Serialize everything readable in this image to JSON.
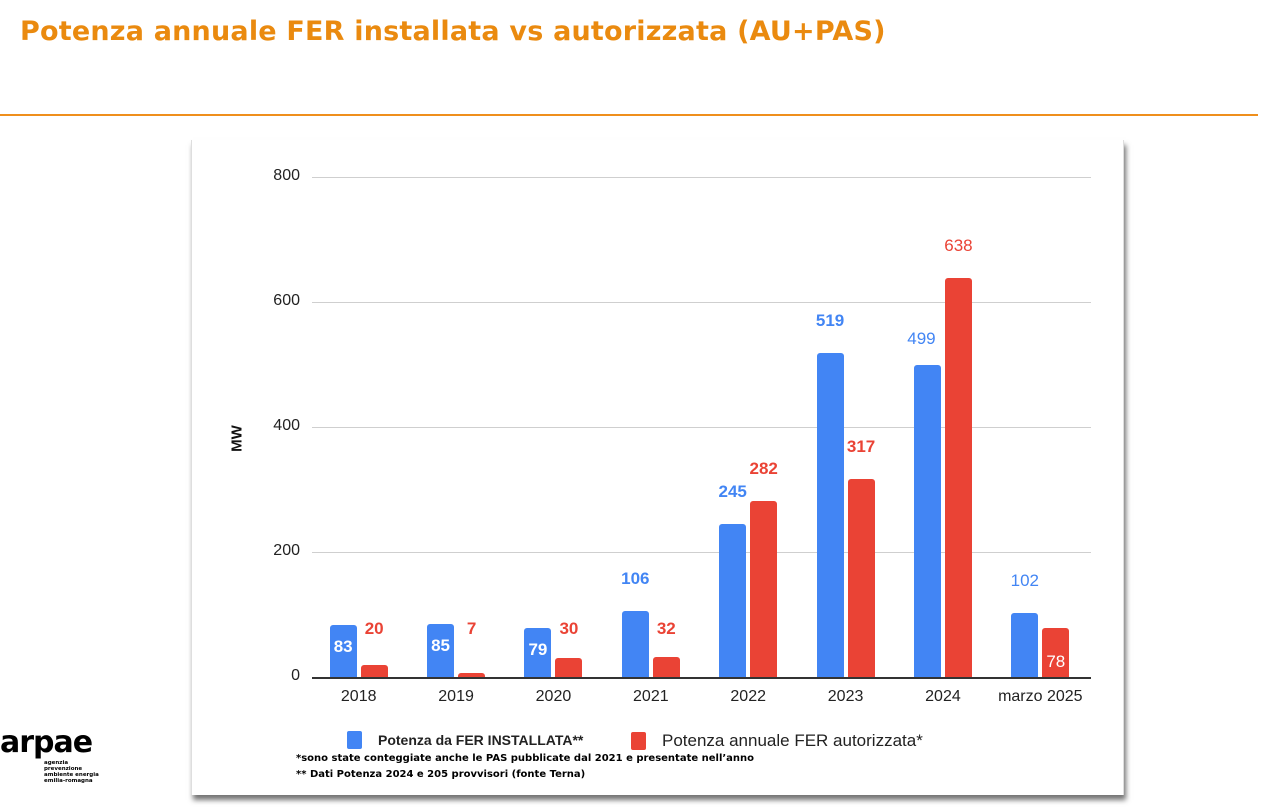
{
  "header": {
    "title": "Potenza annuale FER installata vs autorizzata (AU+PAS)"
  },
  "colors": {
    "title": "#ea8a0f",
    "series_installata": "#4285f4",
    "series_autorizzata": "#ea4335"
  },
  "chart_data": {
    "type": "bar",
    "title": "",
    "xlabel": "",
    "ylabel": "MW",
    "ylim": [
      0,
      800
    ],
    "yticks": [
      0,
      200,
      400,
      600,
      800
    ],
    "grid": true,
    "legend_position": "bottom",
    "categories": [
      "2018",
      "2019",
      "2020",
      "2021",
      "2022",
      "2023",
      "2024",
      "marzo 2025"
    ],
    "series": [
      {
        "name": "Potenza da FER INSTALLATA**",
        "color": "#4285f4",
        "values": [
          83,
          85,
          79,
          106,
          245,
          519,
          499,
          102
        ]
      },
      {
        "name": "Potenza annuale FER autorizzata*",
        "color": "#ea4335",
        "values": [
          20,
          7,
          30,
          32,
          282,
          317,
          638,
          78
        ]
      }
    ],
    "footnotes": [
      "*sono state conteggiate anche le PAS pubblicate dal 2021 e presentate  nell’anno",
      "** Dati Potenza 2024 e 205 provvisori (fonte Terna)"
    ]
  },
  "logo": {
    "name": "arpae",
    "tagline": [
      "agenzia",
      "prevenzione",
      "ambiente energia",
      "emilia-romagna"
    ]
  }
}
